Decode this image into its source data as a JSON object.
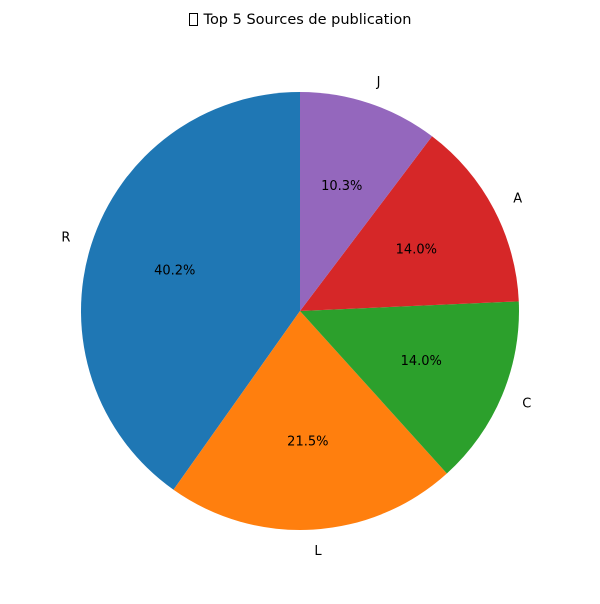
{
  "chart_data": {
    "type": "pie",
    "title": "Top 5 Sources de publication",
    "title_icon": "missing-glyph-icon",
    "categories": [
      "R",
      "L",
      "C",
      "A",
      "J"
    ],
    "values": [
      40.2,
      21.5,
      14.0,
      14.0,
      10.3
    ],
    "value_labels": [
      "40.2%",
      "21.5%",
      "14.0%",
      "14.0%",
      "10.3%"
    ],
    "colors": [
      "#1f77b4",
      "#ff7f0e",
      "#2ca02c",
      "#d62728",
      "#9467bd"
    ],
    "start_angle_deg": 90,
    "direction": "counterclockwise",
    "legend": "none"
  }
}
